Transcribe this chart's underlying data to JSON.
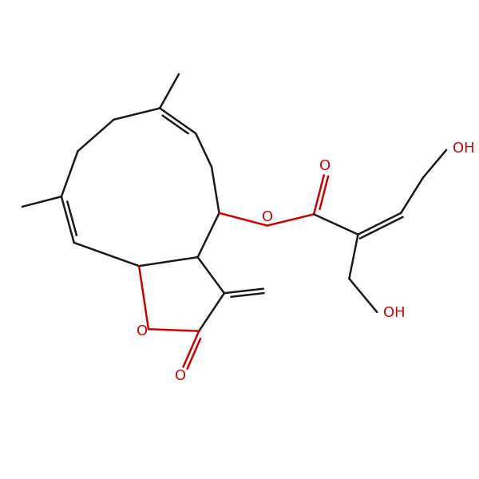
{
  "background_color": "#ffffff",
  "bond_color": "#1a1a1a",
  "o_color": "#cc0000",
  "linewidth": 1.8,
  "figsize": [
    6.0,
    6.0
  ],
  "dpi": 100,
  "xlim": [
    -3.2,
    4.0
  ],
  "ylim": [
    -2.8,
    3.2
  ]
}
